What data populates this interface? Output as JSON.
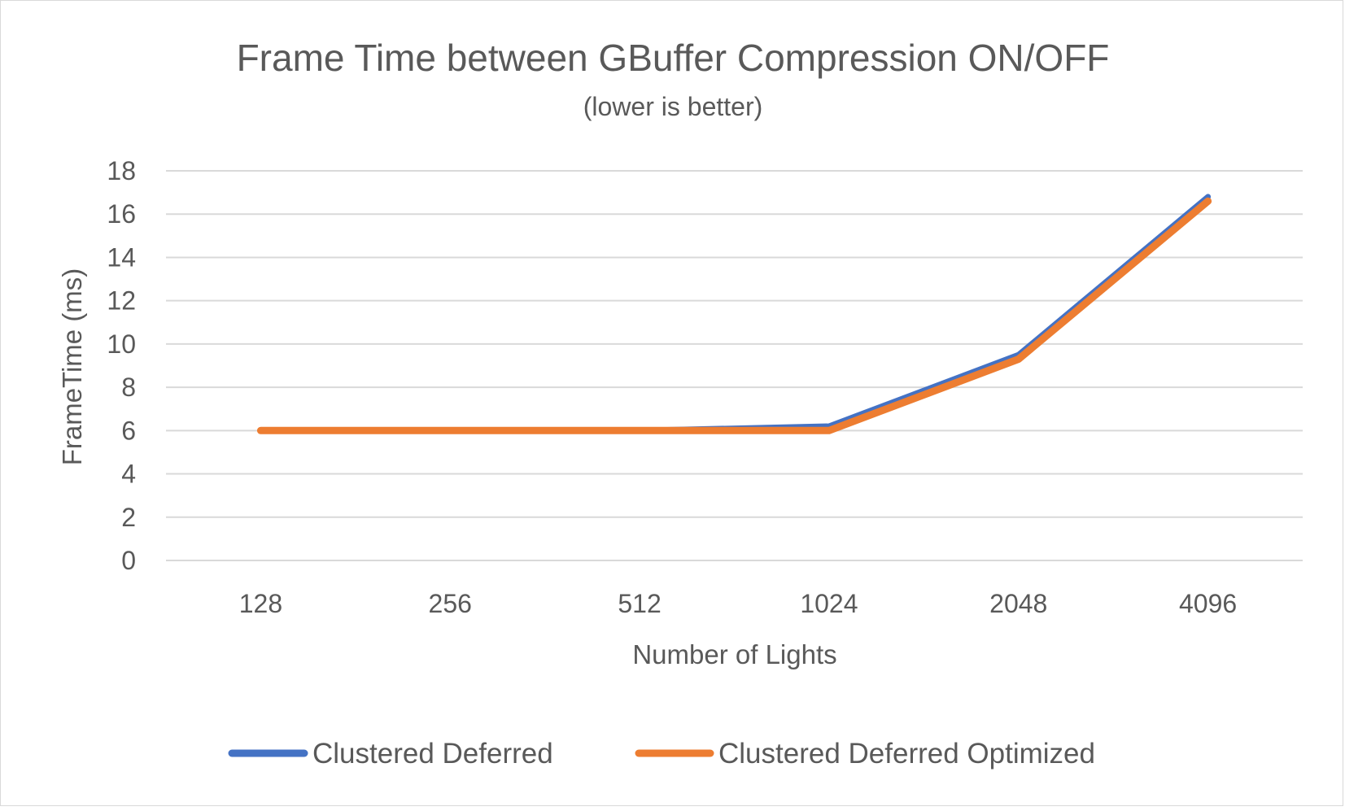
{
  "chart_data": {
    "type": "line",
    "title": "Frame Time between GBuffer Compression ON/OFF",
    "subtitle": "(lower is better)",
    "xlabel": "Number of Lights",
    "ylabel": "FrameTime (ms)",
    "categories": [
      "128",
      "256",
      "512",
      "1024",
      "2048",
      "4096"
    ],
    "ylim": [
      0,
      18
    ],
    "yticks": [
      0,
      2,
      4,
      6,
      8,
      10,
      12,
      14,
      16,
      18
    ],
    "grid": true,
    "legend": "bottom",
    "series": [
      {
        "name": "Clustered Deferred",
        "color": "#4472c4",
        "values": [
          6.0,
          6.0,
          6.0,
          6.2,
          9.5,
          16.8
        ]
      },
      {
        "name": "Clustered Deferred Optimized",
        "color": "#ed7d31",
        "values": [
          6.0,
          6.0,
          6.0,
          6.0,
          9.3,
          16.6
        ]
      }
    ]
  }
}
